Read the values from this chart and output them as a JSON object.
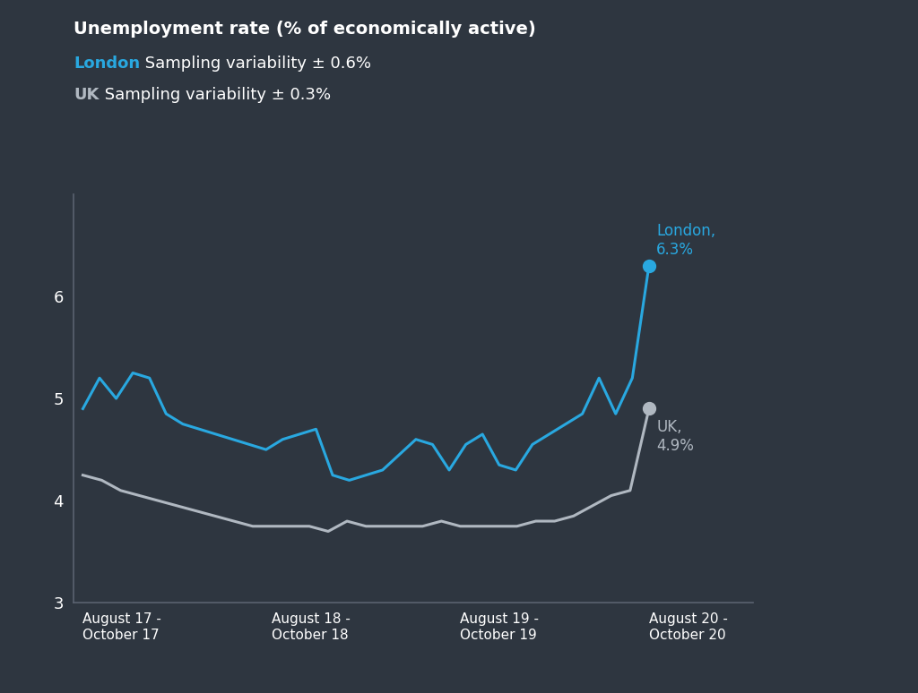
{
  "title": "Unemployment rate (% of economically active)",
  "london_label": "London",
  "london_variability": " Sampling variability ± 0.6%",
  "uk_label": "UK",
  "uk_variability": " Sampling variability ± 0.3%",
  "background_color": "#2e3640",
  "london_color": "#29a8e0",
  "uk_color": "#b0b8c1",
  "text_color": "#ffffff",
  "axis_color": "#5a6270",
  "ylim": [
    3.0,
    7.0
  ],
  "yticks": [
    3,
    4,
    5,
    6
  ],
  "x_labels": [
    "August 17 -\nOctober 17",
    "August 18 -\nOctober 18",
    "August 19 -\nOctober 19",
    "August 20 -\nOctober 20"
  ],
  "london_end_label": "London,\n6.3%",
  "uk_end_label": "UK,\n4.9%",
  "london_data": [
    4.9,
    5.2,
    5.0,
    5.25,
    5.2,
    4.85,
    4.75,
    4.7,
    4.65,
    4.6,
    4.55,
    4.5,
    4.6,
    4.65,
    4.7,
    4.25,
    4.2,
    4.25,
    4.3,
    4.45,
    4.6,
    4.55,
    4.3,
    4.55,
    4.65,
    4.35,
    4.3,
    4.55,
    4.65,
    4.75,
    4.85,
    5.2,
    4.85,
    5.2,
    6.3
  ],
  "uk_data": [
    4.25,
    4.2,
    4.1,
    4.05,
    4.0,
    3.95,
    3.9,
    3.85,
    3.8,
    3.75,
    3.75,
    3.75,
    3.75,
    3.7,
    3.8,
    3.75,
    3.75,
    3.75,
    3.75,
    3.8,
    3.75,
    3.75,
    3.75,
    3.75,
    3.8,
    3.8,
    3.85,
    3.95,
    4.05,
    4.1,
    4.9
  ],
  "n_london": 35,
  "n_uk": 31
}
